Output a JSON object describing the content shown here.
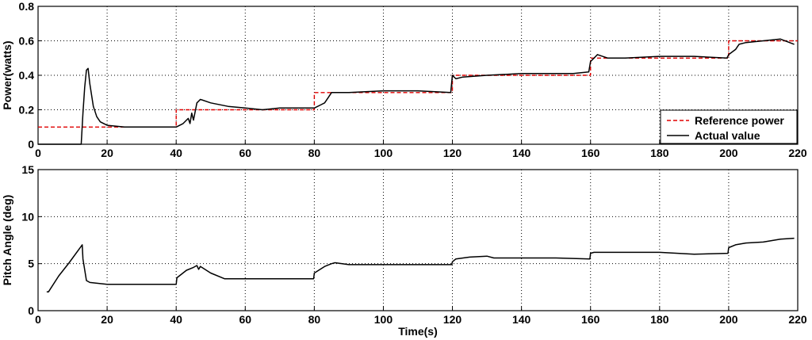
{
  "chart_data": [
    {
      "type": "line",
      "ylabel": "Power(watts)",
      "xlabel": "",
      "xlim": [
        0,
        220
      ],
      "ylim": [
        0,
        0.8
      ],
      "xticks": [
        "0",
        "20",
        "40",
        "60",
        "80",
        "100",
        "120",
        "140",
        "160",
        "180",
        "200",
        "220"
      ],
      "yticks": [
        "0",
        "0.2",
        "0.4",
        "0.6",
        "0.8"
      ],
      "grid": true,
      "legend": "bottom-right",
      "series": [
        {
          "name": "Reference power",
          "color": "#e00000",
          "style": "dashed",
          "x": [
            0,
            40,
            40,
            80,
            80,
            120,
            120,
            160,
            160,
            200,
            200,
            220
          ],
          "y": [
            0.1,
            0.1,
            0.2,
            0.2,
            0.3,
            0.3,
            0.4,
            0.4,
            0.5,
            0.5,
            0.6,
            0.6
          ]
        },
        {
          "name": "Actual value",
          "color": "#000000",
          "style": "solid",
          "x": [
            0,
            12.5,
            13,
            13.5,
            14,
            14.5,
            15,
            16,
            17,
            18,
            20,
            25,
            30,
            35,
            40,
            42,
            43.5,
            44,
            44.5,
            45,
            46,
            47,
            50,
            55,
            60,
            65,
            70,
            75,
            80,
            82,
            83,
            84,
            85,
            90,
            100,
            110,
            119.5,
            120,
            121,
            123,
            130,
            140,
            150,
            155,
            159.5,
            160,
            161,
            162,
            165,
            170,
            180,
            190,
            199.5,
            200,
            202,
            203,
            205,
            210,
            215,
            219
          ],
          "y": [
            0,
            0,
            0.18,
            0.33,
            0.43,
            0.44,
            0.35,
            0.22,
            0.16,
            0.13,
            0.11,
            0.1,
            0.1,
            0.1,
            0.1,
            0.12,
            0.15,
            0.12,
            0.18,
            0.14,
            0.24,
            0.26,
            0.24,
            0.22,
            0.21,
            0.2,
            0.21,
            0.21,
            0.21,
            0.23,
            0.24,
            0.27,
            0.3,
            0.3,
            0.31,
            0.31,
            0.3,
            0.4,
            0.38,
            0.39,
            0.4,
            0.41,
            0.41,
            0.41,
            0.42,
            0.48,
            0.5,
            0.52,
            0.5,
            0.5,
            0.51,
            0.51,
            0.5,
            0.52,
            0.55,
            0.58,
            0.59,
            0.6,
            0.61,
            0.58
          ]
        }
      ]
    },
    {
      "type": "line",
      "ylabel": "Pitch Angle (deg)",
      "xlabel": "Time(s)",
      "xlim": [
        0,
        220
      ],
      "ylim": [
        0,
        15
      ],
      "xticks": [
        "0",
        "20",
        "40",
        "60",
        "80",
        "100",
        "120",
        "140",
        "160",
        "180",
        "200",
        "220"
      ],
      "yticks": [
        "0",
        "5",
        "10",
        "15"
      ],
      "grid": true,
      "series": [
        {
          "color": "#000000",
          "style": "solid",
          "x": [
            2.5,
            3,
            6,
            9,
            12.8,
            13,
            14,
            15,
            20,
            30,
            40,
            40.2,
            43,
            45,
            46,
            46.5,
            47,
            50,
            54,
            60,
            70,
            79.8,
            80,
            83,
            85,
            86,
            90,
            100,
            110,
            119.8,
            120,
            121,
            125,
            130,
            132,
            140,
            150,
            159.8,
            160,
            161,
            170,
            180,
            190,
            199.8,
            200,
            202,
            205,
            210,
            215,
            219
          ],
          "y": [
            2.0,
            2.0,
            3.7,
            5.1,
            7.0,
            5.5,
            3.2,
            3.0,
            2.8,
            2.8,
            2.8,
            3.5,
            4.3,
            4.6,
            4.8,
            4.4,
            4.7,
            4.0,
            3.4,
            3.4,
            3.4,
            3.4,
            4.0,
            4.7,
            5.0,
            5.1,
            4.9,
            4.9,
            4.9,
            4.9,
            5.2,
            5.5,
            5.7,
            5.8,
            5.6,
            5.6,
            5.6,
            5.5,
            6.1,
            6.2,
            6.2,
            6.2,
            6.0,
            6.1,
            6.7,
            7.0,
            7.2,
            7.3,
            7.6,
            7.7
          ]
        }
      ]
    }
  ]
}
